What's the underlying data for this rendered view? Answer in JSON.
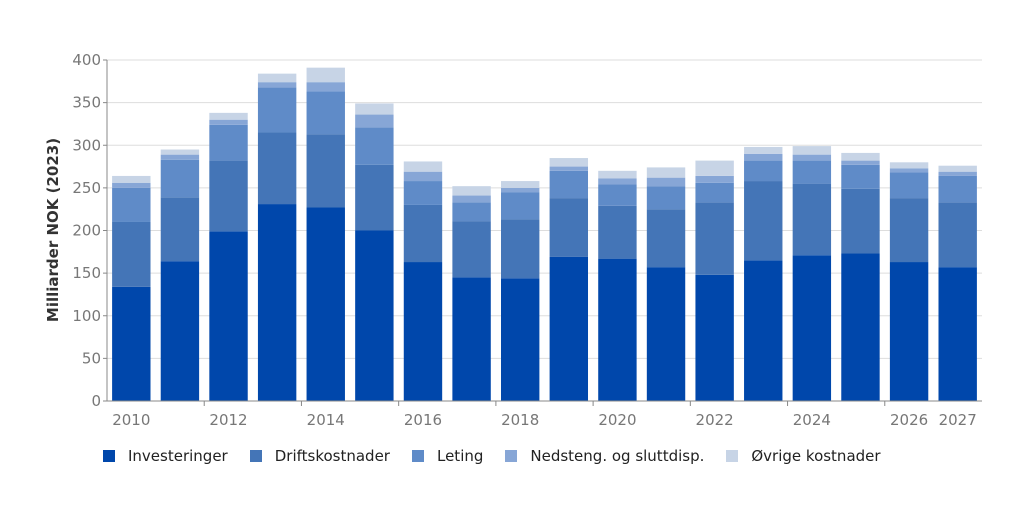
{
  "chart_data": {
    "type": "bar",
    "stacked": true,
    "title": "",
    "xlabel": "",
    "ylabel": "Milliarder NOK (2023)",
    "ylim": [
      0,
      400
    ],
    "yticks": [
      0,
      50,
      100,
      150,
      200,
      250,
      300,
      350,
      400
    ],
    "grid": true,
    "legend_position": "bottom",
    "categories": [
      "2010",
      "2011",
      "2012",
      "2013",
      "2014",
      "2015",
      "2016",
      "2017",
      "2018",
      "2019",
      "2020",
      "2021",
      "2022",
      "2023",
      "2024",
      "2025",
      "2026",
      "2027"
    ],
    "x_tick_labels": [
      "2010",
      "2012",
      "2014",
      "2016",
      "2018",
      "2020",
      "2022",
      "2024",
      "2026",
      "2027"
    ],
    "series": [
      {
        "name": "Investeringer",
        "color": "#0047ab",
        "values": [
          134,
          164,
          199,
          231,
          227,
          200,
          163,
          145,
          144,
          169,
          167,
          157,
          148,
          165,
          171,
          173,
          163,
          157
        ]
      },
      {
        "name": "Driftskostnader",
        "color": "#4475b7",
        "values": [
          76,
          75,
          83,
          84,
          86,
          77,
          67,
          66,
          69,
          69,
          62,
          68,
          85,
          93,
          84,
          76,
          75,
          76
        ]
      },
      {
        "name": "Leting",
        "color": "#5f8bc8",
        "values": [
          40,
          44,
          42,
          53,
          50,
          44,
          28,
          22,
          32,
          32,
          25,
          27,
          23,
          24,
          27,
          28,
          30,
          31
        ]
      },
      {
        "name": "Nedsteng. og sluttdisp.",
        "color": "#87a6d6",
        "values": [
          6,
          6,
          6,
          6,
          11,
          15,
          11,
          8,
          5,
          5,
          7,
          10,
          8,
          8,
          7,
          5,
          5,
          5
        ]
      },
      {
        "name": "Øvrige kostnader",
        "color": "#c7d4e6",
        "values": [
          8,
          6,
          8,
          10,
          17,
          13,
          12,
          11,
          8,
          10,
          9,
          12,
          18,
          8,
          10,
          9,
          7,
          7
        ]
      }
    ]
  }
}
